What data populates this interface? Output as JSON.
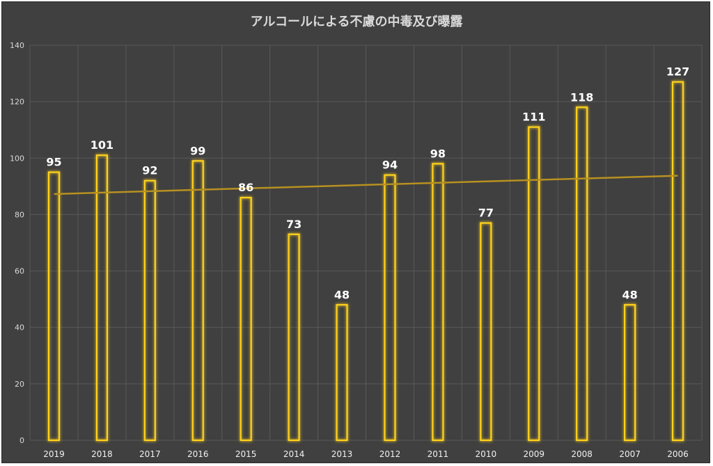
{
  "chart_data": {
    "type": "bar",
    "title": "アルコールによる不慮の中毒及び曝露",
    "categories": [
      "2019",
      "2018",
      "2017",
      "2016",
      "2015",
      "2014",
      "2013",
      "2012",
      "2011",
      "2010",
      "2009",
      "2008",
      "2007",
      "2006"
    ],
    "values": [
      95,
      101,
      92,
      99,
      86,
      73,
      48,
      94,
      98,
      77,
      111,
      118,
      48,
      127
    ],
    "ylim": [
      0,
      140
    ],
    "yticks": [
      0,
      20,
      40,
      60,
      80,
      100,
      120,
      140
    ],
    "grid": true,
    "trendline": "linear",
    "bar_color": "#ffd21f",
    "trend_color": "#b8911f",
    "background_color": "#404040"
  }
}
